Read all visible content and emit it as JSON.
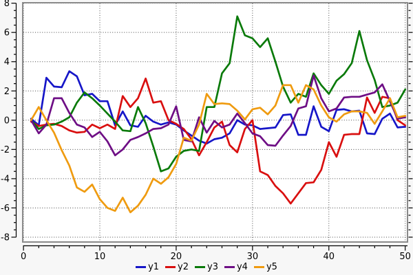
{
  "chart_data": {
    "type": "line",
    "title": "",
    "xlabel": "",
    "ylabel": "",
    "xlim": [
      -0.1,
      50.3
    ],
    "ylim": [
      -8.33,
      8.03
    ],
    "x_ticks_major": [
      0,
      10,
      20,
      30,
      40,
      50
    ],
    "x_minor_step": 2,
    "y_ticks_major": [
      -8,
      -6,
      -4,
      -2,
      0,
      2,
      4,
      6,
      8
    ],
    "y_minor_step": 0.5,
    "grid": "dotted-at-major-ticks",
    "legend_position": "bottom-center",
    "plot_bg": "#ffffff",
    "outer_bg": "#f7f7f7",
    "frame_color": "#8a8a8a",
    "grid_color": "#4a4a4a",
    "axis_color": "#000000",
    "x": [
      1,
      2,
      3,
      4,
      5,
      6,
      7,
      8,
      9,
      10,
      11,
      12,
      13,
      14,
      15,
      16,
      17,
      18,
      19,
      20,
      21,
      22,
      23,
      24,
      25,
      26,
      27,
      28,
      29,
      30,
      31,
      32,
      33,
      34,
      35,
      36,
      37,
      38,
      39,
      40,
      41,
      42,
      43,
      44,
      45,
      46,
      47,
      48,
      49,
      50
    ],
    "series": [
      {
        "name": "y1",
        "color": "#1616c8",
        "values": [
          0.1,
          -0.35,
          2.9,
          2.3,
          2.25,
          3.35,
          3.0,
          1.7,
          1.8,
          1.3,
          1.3,
          -0.35,
          0.6,
          -0.35,
          -0.45,
          0.3,
          -0.1,
          -0.3,
          -0.15,
          -0.3,
          -0.7,
          -1.05,
          -1.4,
          -1.6,
          -1.3,
          -1.2,
          -0.9,
          0.0,
          -0.3,
          -0.35,
          -0.6,
          -0.55,
          -0.5,
          0.35,
          0.4,
          -1.0,
          -1.0,
          0.95,
          -0.45,
          -0.75,
          0.7,
          0.75,
          0.6,
          0.65,
          -0.9,
          -0.95,
          0.1,
          0.45,
          -0.5,
          -0.45
        ]
      },
      {
        "name": "y2",
        "color": "#d90f0f",
        "values": [
          -0.1,
          -0.4,
          -0.3,
          -0.25,
          -0.4,
          -0.7,
          -0.85,
          -0.8,
          -0.3,
          -0.55,
          -0.3,
          -0.6,
          1.65,
          0.9,
          1.5,
          2.85,
          1.2,
          1.3,
          0.0,
          -0.25,
          -0.6,
          -1.3,
          -2.4,
          -1.5,
          -0.5,
          -0.1,
          -1.7,
          -2.2,
          -0.6,
          0.0,
          -3.5,
          -3.75,
          -4.5,
          -5.0,
          -5.7,
          -5.0,
          -4.3,
          -4.25,
          -3.4,
          -1.5,
          -2.5,
          -1.0,
          -0.95,
          -0.95,
          1.55,
          0.5,
          1.6,
          1.5,
          0.0,
          -0.35
        ]
      },
      {
        "name": "y3",
        "color": "#0a7a0a",
        "values": [
          0.0,
          -0.6,
          -0.35,
          -0.3,
          -0.1,
          0.2,
          1.2,
          1.9,
          1.5,
          1.0,
          0.45,
          -0.1,
          -0.7,
          -0.75,
          0.9,
          -0.2,
          -1.8,
          -3.5,
          -3.3,
          -2.5,
          -2.1,
          -2.0,
          -2.1,
          0.9,
          0.9,
          3.2,
          3.9,
          7.1,
          5.8,
          5.6,
          5.0,
          5.6,
          4.0,
          2.3,
          1.2,
          1.8,
          1.6,
          3.2,
          2.4,
          1.8,
          2.7,
          3.15,
          3.9,
          6.1,
          4.1,
          2.75,
          0.9,
          1.0,
          1.2,
          2.1
        ]
      },
      {
        "name": "y4",
        "color": "#6e0e85",
        "values": [
          0.0,
          -0.9,
          -0.3,
          1.5,
          1.5,
          0.5,
          -0.3,
          -0.5,
          -1.15,
          -0.8,
          -1.45,
          -2.4,
          -2.0,
          -1.35,
          -1.15,
          -0.9,
          -0.6,
          -0.55,
          -0.3,
          0.95,
          -1.35,
          -1.45,
          0.2,
          -0.85,
          -0.05,
          -0.5,
          -0.3,
          0.45,
          -0.2,
          -0.9,
          -1.1,
          -1.7,
          -1.75,
          -1.05,
          -0.4,
          0.8,
          0.95,
          3.05,
          1.5,
          0.6,
          0.8,
          1.55,
          1.6,
          1.6,
          1.75,
          1.9,
          2.45,
          1.3,
          0.1,
          0.2
        ]
      },
      {
        "name": "y5",
        "color": "#ef9b10",
        "values": [
          0.0,
          0.9,
          0.0,
          -0.85,
          -2.05,
          -3.1,
          -4.6,
          -4.9,
          -4.4,
          -5.4,
          -6.0,
          -6.2,
          -5.3,
          -6.3,
          -5.85,
          -5.1,
          -4.0,
          -4.35,
          -3.9,
          -3.0,
          -1.2,
          -1.4,
          -0.3,
          1.8,
          1.1,
          1.15,
          1.1,
          0.65,
          0.05,
          0.75,
          0.85,
          0.4,
          1.0,
          2.4,
          2.4,
          1.2,
          2.4,
          2.1,
          1.0,
          0.2,
          -0.1,
          0.4,
          0.6,
          0.6,
          0.5,
          -0.25,
          0.6,
          1.5,
          0.2,
          0.3
        ]
      }
    ]
  }
}
